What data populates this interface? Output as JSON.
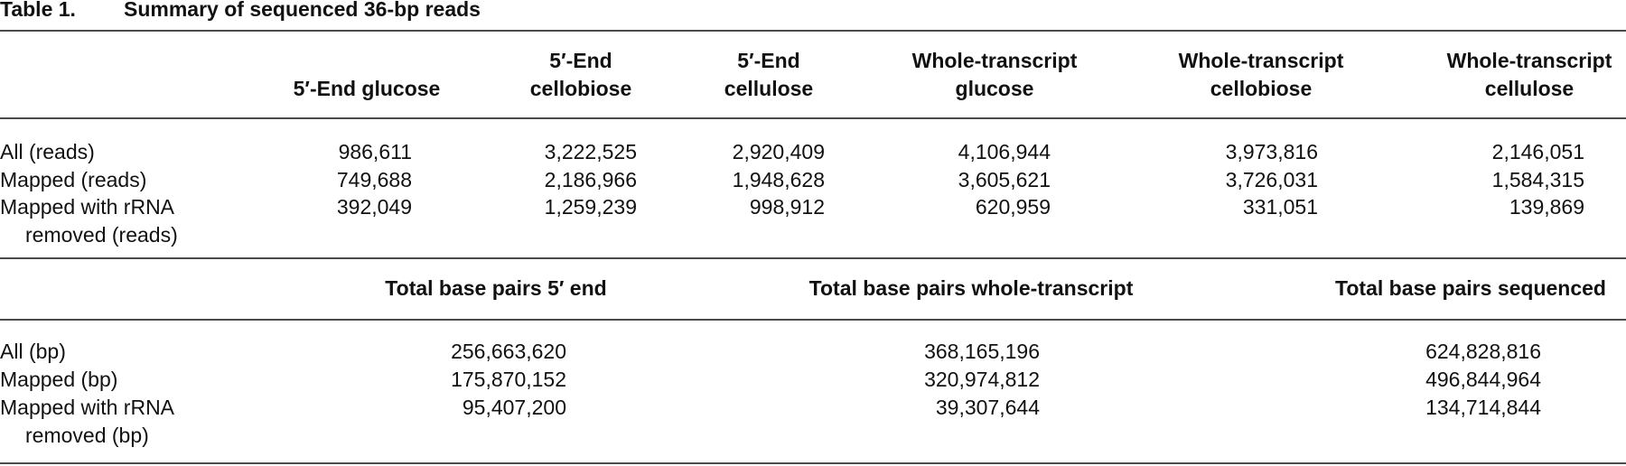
{
  "title": {
    "label": "Table 1.",
    "text": "Summary of sequenced 36-bp reads"
  },
  "sections": [
    {
      "headers": [
        [
          "5′-End glucose"
        ],
        [
          "5′-End",
          "cellobiose"
        ],
        [
          "5′-End",
          "cellulose"
        ],
        [
          "Whole-transcript",
          "glucose"
        ],
        [
          "Whole-transcript",
          "cellobiose"
        ],
        [
          "Whole-transcript",
          "cellulose"
        ]
      ],
      "rows": [
        {
          "label": [
            "All (reads)"
          ],
          "cells": [
            "986,611",
            "3,222,525",
            "2,920,409",
            "4,106,944",
            "3,973,816",
            "2,146,051"
          ]
        },
        {
          "label": [
            "Mapped (reads)"
          ],
          "cells": [
            "749,688",
            "2,186,966",
            "1,948,628",
            "3,605,621",
            "3,726,031",
            "1,584,315"
          ]
        },
        {
          "label": [
            "Mapped with rRNA",
            "removed (reads)"
          ],
          "cells": [
            "392,049",
            "1,259,239",
            "998,912",
            "620,959",
            "331,051",
            "139,869"
          ]
        }
      ]
    },
    {
      "headers": [
        [
          "Total base pairs 5′ end"
        ],
        [
          "Total base pairs whole-transcript"
        ],
        [
          "Total base pairs sequenced"
        ]
      ],
      "rows": [
        {
          "label": [
            "All (bp)"
          ],
          "cells": [
            "256,663,620",
            "368,165,196",
            "624,828,816"
          ]
        },
        {
          "label": [
            "Mapped (bp)"
          ],
          "cells": [
            "175,870,152",
            "320,974,812",
            "496,844,964"
          ]
        },
        {
          "label": [
            "Mapped with rRNA",
            "removed (bp)"
          ],
          "cells": [
            "95,407,200",
            "39,307,644",
            "134,714,844"
          ]
        }
      ]
    }
  ]
}
